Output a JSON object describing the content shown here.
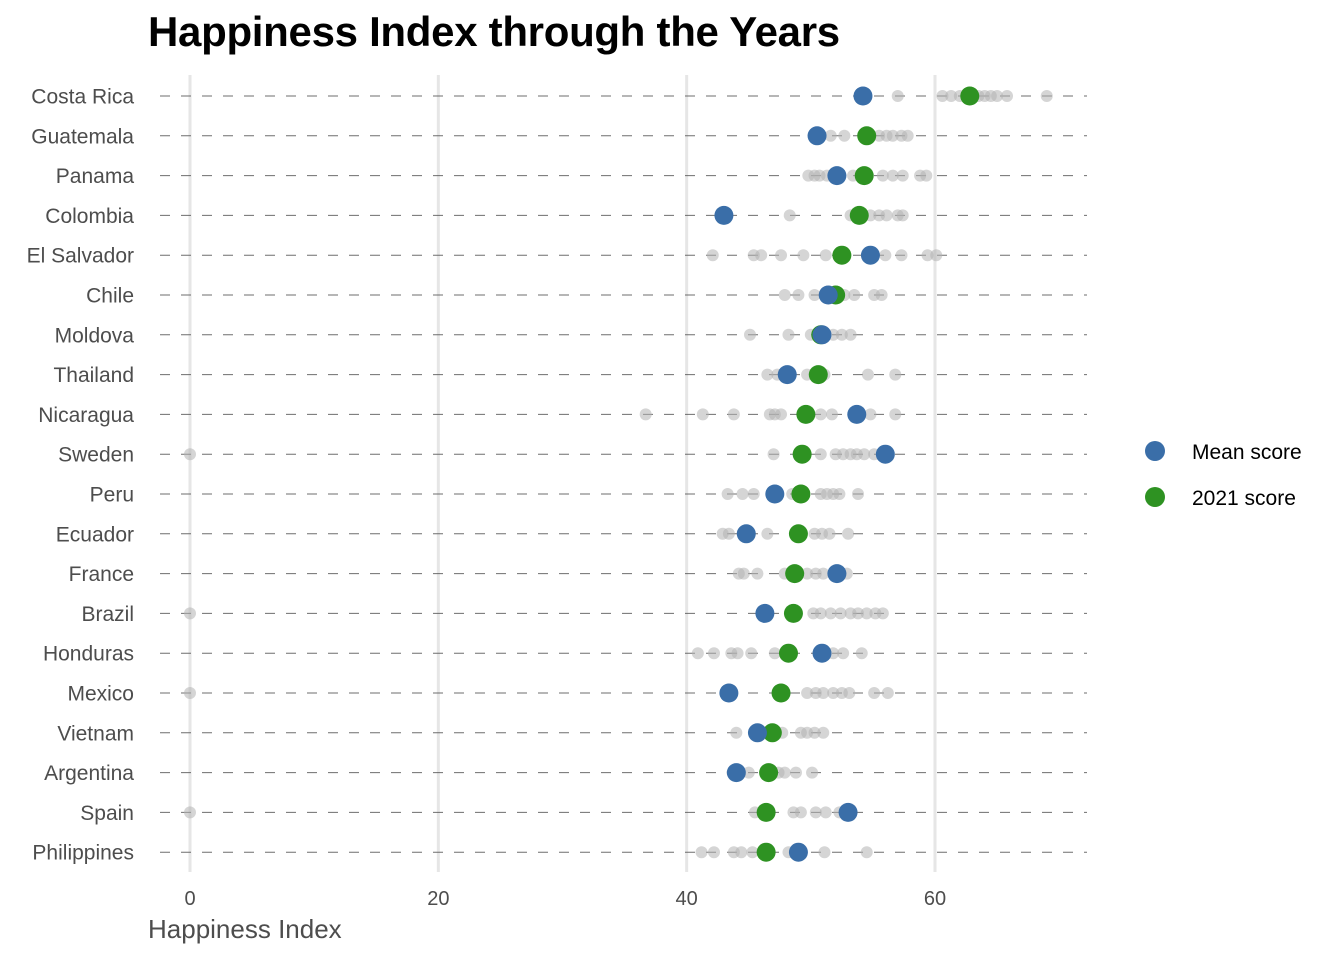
{
  "chart_data": {
    "type": "scatter",
    "title": "Happiness Index through the Years",
    "xlabel": "Happiness Index",
    "ylabel": "",
    "xlim": [
      -3,
      72
    ],
    "xticks": [
      0,
      20,
      40,
      60
    ],
    "grid": "vertical major",
    "legend": {
      "placement": "right",
      "entries": [
        {
          "name": "Mean score",
          "color": "#3a6ea8"
        },
        {
          "name": "2021 score",
          "color": "#2e9222"
        }
      ]
    },
    "yearly_points_color": "#bdbdbd",
    "countries": [
      {
        "name": "Costa Rica",
        "mean": 54.2,
        "score_2021": 62.8,
        "yearly": [
          57.0,
          60.6,
          61.3,
          62.0,
          63.5,
          64.0,
          64.5,
          65.0,
          65.8,
          69.0
        ]
      },
      {
        "name": "Guatemala",
        "mean": 50.5,
        "score_2021": 54.5,
        "yearly": [
          51.6,
          52.7,
          55.5,
          56.1,
          56.6,
          57.3,
          57.8
        ]
      },
      {
        "name": "Panama",
        "mean": 52.1,
        "score_2021": 54.3,
        "yearly": [
          49.8,
          50.3,
          50.7,
          51.3,
          53.4,
          55.8,
          56.6,
          57.4,
          58.8,
          59.3
        ]
      },
      {
        "name": "Colombia",
        "mean": 43.0,
        "score_2021": 53.9,
        "yearly": [
          48.3,
          53.2,
          54.8,
          55.5,
          56.1,
          57.0,
          57.4
        ]
      },
      {
        "name": "El Salvador",
        "mean": 54.8,
        "score_2021": 52.5,
        "yearly": [
          42.1,
          45.4,
          46.0,
          47.6,
          49.4,
          51.2,
          55.0,
          56.0,
          57.3,
          59.4,
          60.1
        ]
      },
      {
        "name": "Chile",
        "mean": 51.4,
        "score_2021": 52.0,
        "yearly": [
          47.9,
          49.0,
          50.3,
          52.7,
          53.5,
          55.1,
          55.7
        ]
      },
      {
        "name": "Moldova",
        "mean": 50.9,
        "score_2021": 50.8,
        "yearly": [
          45.1,
          48.2,
          50.0,
          51.8,
          52.5,
          53.2
        ]
      },
      {
        "name": "Thailand",
        "mean": 48.1,
        "score_2021": 50.6,
        "yearly": [
          46.5,
          47.3,
          49.7,
          51.1,
          54.6,
          56.8
        ]
      },
      {
        "name": "Nicaragua",
        "mean": 53.7,
        "score_2021": 49.6,
        "yearly": [
          36.7,
          41.3,
          43.8,
          46.7,
          47.1,
          47.6,
          50.8,
          51.7,
          54.8,
          56.8
        ]
      },
      {
        "name": "Sweden",
        "mean": 56.0,
        "score_2021": 49.3,
        "yearly": [
          0.0,
          47.0,
          50.8,
          52.0,
          52.6,
          53.2,
          53.7,
          54.3,
          55.1
        ]
      },
      {
        "name": "Peru",
        "mean": 47.1,
        "score_2021": 49.2,
        "yearly": [
          43.3,
          44.5,
          45.4,
          48.5,
          50.8,
          51.3,
          51.8,
          52.3,
          53.8
        ]
      },
      {
        "name": "Ecuador",
        "mean": 44.8,
        "score_2021": 49.0,
        "yearly": [
          42.9,
          43.4,
          46.5,
          50.3,
          50.9,
          51.5,
          53.0
        ]
      },
      {
        "name": "France",
        "mean": 52.1,
        "score_2021": 48.7,
        "yearly": [
          44.2,
          44.6,
          45.7,
          47.9,
          49.7,
          50.4,
          51.0,
          52.9
        ]
      },
      {
        "name": "Brazil",
        "mean": 46.3,
        "score_2021": 48.6,
        "yearly": [
          0.0,
          50.2,
          50.8,
          51.6,
          52.4,
          53.2,
          53.8,
          54.5,
          55.2,
          55.8
        ]
      },
      {
        "name": "Honduras",
        "mean": 50.9,
        "score_2021": 48.2,
        "yearly": [
          40.9,
          42.2,
          43.6,
          44.1,
          45.2,
          47.1,
          51.8,
          52.6,
          54.1
        ]
      },
      {
        "name": "Mexico",
        "mean": 43.4,
        "score_2021": 47.6,
        "yearly": [
          0.0,
          49.7,
          50.4,
          51.0,
          51.8,
          52.5,
          53.1,
          55.1,
          56.2
        ]
      },
      {
        "name": "Vietnam",
        "mean": 45.7,
        "score_2021": 46.9,
        "yearly": [
          44.0,
          47.7,
          49.2,
          49.7,
          50.3,
          51.0
        ]
      },
      {
        "name": "Argentina",
        "mean": 44.0,
        "score_2021": 46.6,
        "yearly": [
          43.7,
          45.0,
          47.4,
          47.9,
          48.8,
          50.1
        ]
      },
      {
        "name": "Spain",
        "mean": 53.0,
        "score_2021": 46.4,
        "yearly": [
          0.0,
          45.5,
          48.6,
          49.2,
          50.4,
          51.2,
          52.3
        ]
      },
      {
        "name": "Philippines",
        "mean": 49.0,
        "score_2021": 46.4,
        "yearly": [
          41.2,
          42.2,
          43.8,
          44.4,
          45.3,
          48.2,
          51.1,
          54.5
        ]
      }
    ]
  }
}
